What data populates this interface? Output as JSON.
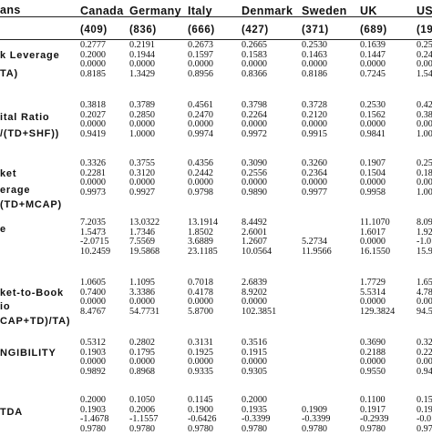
{
  "header": {
    "col0": "ans",
    "countries": [
      "Canada",
      "Germany",
      "Italy",
      "Denmark",
      "Sweden",
      "UK",
      "US"
    ],
    "obs": [
      "(409)",
      "(836)",
      "(666)",
      "(427)",
      "(371)",
      "(689)",
      "(19"
    ]
  },
  "sections": [
    {
      "id": "book-leverage",
      "labels": [
        "k Leverage",
        "TA)"
      ],
      "rows": [
        [
          "0.2777",
          "0.2191",
          "0.2673",
          "0.2665",
          "0.2530",
          "0.1639",
          "0.25"
        ],
        [
          "0.2000",
          "0.1944",
          "0.1597",
          "0.1583",
          "0.1463",
          "0.1447",
          "0.24"
        ],
        [
          "0.0000",
          "0.0000",
          "0.0000",
          "0.0000",
          "0.0000",
          "0.0000",
          "0.00"
        ],
        [
          "0.8185",
          "1.3429",
          "0.8956",
          "0.8366",
          "0.8186",
          "0.7245",
          "1.54"
        ]
      ]
    },
    {
      "id": "capital-ratio",
      "labels": [
        "ital Ratio",
        "/(TD+SHF))"
      ],
      "rows": [
        [
          "0.3818",
          "0.3789",
          "0.4561",
          "0.3798",
          "0.3728",
          "0.2530",
          "0.42"
        ],
        [
          "0.2027",
          "0.2850",
          "0.2470",
          "0.2264",
          "0.2120",
          "0.1562",
          "0.38"
        ],
        [
          "0.0000",
          "0.0000",
          "0.0000",
          "0.0000",
          "0.0000",
          "0.0000",
          "0.00"
        ],
        [
          "0.9419",
          "1.0000",
          "0.9974",
          "0.9972",
          "0.9915",
          "0.9841",
          "1.00"
        ]
      ]
    },
    {
      "id": "market-leverage",
      "labels": [
        "ket",
        "erage",
        "(TD+MCAP)"
      ],
      "rows": [
        [
          "0.3326",
          "0.3755",
          "0.4356",
          "0.3090",
          "0.3260",
          "0.1907",
          "0.25"
        ],
        [
          "0.2281",
          "0.3120",
          "0.2442",
          "0.2556",
          "0.2364",
          "0.1504",
          "0.18"
        ],
        [
          "0.0000",
          "0.0000",
          "0.0000",
          "0.0000",
          "0.0000",
          "0.0000",
          "0.00"
        ],
        [
          "0.9973",
          "0.9927",
          "0.9798",
          "0.9890",
          "0.9977",
          "0.9958",
          "1.00"
        ]
      ]
    },
    {
      "id": "size",
      "labels": [
        "e"
      ],
      "rows": [
        [
          "7.2035",
          "13.0322",
          "13.1914",
          "8.4492",
          "11.1070",
          "8.09"
        ],
        [
          "1.5473",
          "1.7346",
          "1.8502",
          "2.6001",
          "1.6017",
          "1.92"
        ],
        [
          "-2.0715",
          "7.5569",
          "3.6889",
          "1.2607",
          "5.2734",
          "0.0000",
          "-1.0"
        ],
        [
          "10.2459",
          "19.5868",
          "23.1185",
          "10.0564",
          "11.9566",
          "16.1550",
          "15.9"
        ]
      ]
    },
    {
      "id": "market-to-book",
      "labels": [
        "ket-to-Book",
        "io",
        "CAP+TD)/TA)"
      ],
      "rows": [
        [
          "1.0605",
          "1.1095",
          "0.7018",
          "2.6839",
          "1.7729",
          "1.65"
        ],
        [
          "0.7400",
          "3.3386",
          "0.4178",
          "8.9202",
          "5.5314",
          "4.78"
        ],
        [
          "0.0000",
          "0.0000",
          "0.0000",
          "0.0000",
          "0.0000",
          "0.00"
        ],
        [
          "8.4767",
          "54.7731",
          "5.8700",
          "102.3851",
          "129.3824",
          "94.5"
        ]
      ]
    },
    {
      "id": "tangibility",
      "labels": [
        "NGIBILITY"
      ],
      "rows": [
        [
          "0.5312",
          "0.2802",
          "0.3131",
          "0.3516",
          "0.3690",
          "0.32"
        ],
        [
          "0.1903",
          "0.1795",
          "0.1925",
          "0.1915",
          "0.2188",
          "0.22"
        ],
        [
          "0.0000",
          "0.0000",
          "0.0000",
          "0.0000",
          "0.0000",
          "0.00"
        ],
        [
          "0.9892",
          "0.8968",
          "0.9335",
          "0.9305",
          "0.9550",
          "0.94"
        ]
      ]
    },
    {
      "id": "tda",
      "labels": [
        "TDA"
      ],
      "rows": [
        [
          "0.2000",
          "0.1050",
          "0.1145",
          "0.2000",
          "0.1100",
          "0.15"
        ],
        [
          "0.1903",
          "0.2006",
          "0.1900",
          "0.1935",
          "0.1909",
          "0.1917",
          "0.19"
        ],
        [
          "-1.4678",
          "-1.1557",
          "-0.6426",
          "-0.3399",
          "-0.3399",
          "-0.2939",
          "-0.0"
        ],
        [
          "0.9780",
          "0.9780",
          "0.9780",
          "0.9780",
          "0.9780",
          "0.9780",
          "0.97"
        ]
      ]
    }
  ]
}
